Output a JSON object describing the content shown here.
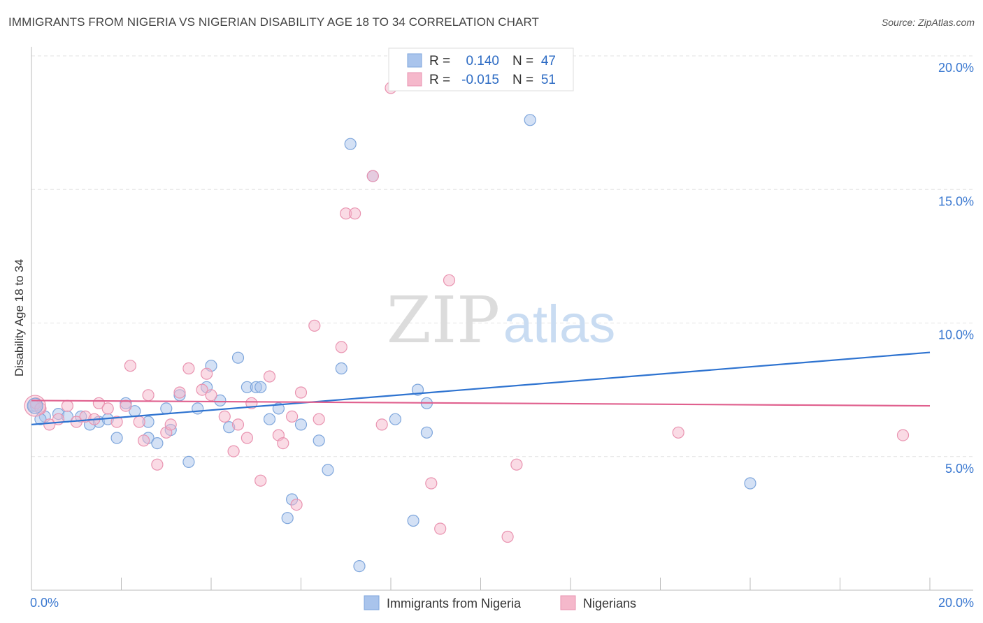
{
  "title": "IMMIGRANTS FROM NIGERIA VS NIGERIAN DISABILITY AGE 18 TO 34 CORRELATION CHART",
  "source": "Source: ZipAtlas.com",
  "watermark": {
    "zip": "ZIP",
    "atlas": "atlas"
  },
  "chart_data": {
    "type": "scatter",
    "xlim": [
      0,
      20
    ],
    "ylim": [
      0,
      20
    ],
    "ylabel": "Disability Age 18 to 34",
    "x_tick_labels": [
      {
        "value": 0,
        "label": "0.0%"
      },
      {
        "value": 20,
        "label": "20.0%"
      }
    ],
    "y_tick_labels": [
      {
        "value": 5,
        "label": "5.0%"
      },
      {
        "value": 10,
        "label": "10.0%"
      },
      {
        "value": 15,
        "label": "15.0%"
      },
      {
        "value": 20,
        "label": "20.0%"
      }
    ],
    "legend_stats": [
      {
        "r_label": "R =",
        "r_value": "0.140",
        "n_label": "N =",
        "n_value": "47"
      },
      {
        "r_label": "R =",
        "r_value": "-0.015",
        "n_label": "N =",
        "n_value": "51"
      }
    ],
    "series": [
      {
        "name": "Immigrants from Nigeria",
        "color": "#a9c4ec",
        "stroke": "#7ea6dc",
        "line_color": "#2e73d0",
        "trend": {
          "x": [
            0,
            20
          ],
          "y": [
            6.2,
            8.9
          ]
        },
        "points": [
          [
            0.1,
            6.9
          ],
          [
            0.3,
            6.5
          ],
          [
            0.6,
            6.6
          ],
          [
            0.8,
            6.5
          ],
          [
            1.1,
            6.5
          ],
          [
            1.3,
            6.2
          ],
          [
            1.5,
            6.3
          ],
          [
            1.7,
            6.4
          ],
          [
            1.9,
            5.7
          ],
          [
            2.1,
            7.0
          ],
          [
            2.3,
            6.7
          ],
          [
            2.6,
            5.7
          ],
          [
            2.6,
            6.3
          ],
          [
            2.8,
            5.5
          ],
          [
            3.0,
            6.8
          ],
          [
            3.1,
            6.0
          ],
          [
            3.3,
            7.3
          ],
          [
            3.5,
            4.8
          ],
          [
            3.7,
            6.8
          ],
          [
            3.9,
            7.6
          ],
          [
            4.0,
            8.4
          ],
          [
            4.2,
            7.1
          ],
          [
            4.4,
            6.1
          ],
          [
            4.6,
            8.7
          ],
          [
            4.8,
            7.6
          ],
          [
            5.0,
            7.6
          ],
          [
            5.1,
            7.6
          ],
          [
            5.3,
            6.4
          ],
          [
            5.5,
            6.8
          ],
          [
            5.7,
            2.7
          ],
          [
            5.8,
            3.4
          ],
          [
            6.0,
            6.2
          ],
          [
            6.4,
            5.6
          ],
          [
            6.6,
            4.5
          ],
          [
            6.9,
            8.3
          ],
          [
            7.1,
            16.7
          ],
          [
            7.3,
            0.9
          ],
          [
            7.6,
            15.5
          ],
          [
            8.1,
            6.4
          ],
          [
            8.5,
            2.6
          ],
          [
            8.8,
            7.0
          ],
          [
            8.6,
            7.5
          ],
          [
            8.8,
            5.9
          ],
          [
            11.1,
            17.6
          ],
          [
            16.0,
            4.0
          ],
          [
            0.05,
            6.9
          ],
          [
            0.2,
            6.4
          ]
        ]
      },
      {
        "name": "Nigerians",
        "color": "#f5b8cb",
        "stroke": "#e993b0",
        "line_color": "#e0608e",
        "trend": {
          "x": [
            0,
            20
          ],
          "y": [
            7.1,
            6.9
          ]
        },
        "points": [
          [
            0.1,
            7.0
          ],
          [
            0.2,
            6.8
          ],
          [
            0.4,
            6.2
          ],
          [
            0.6,
            6.4
          ],
          [
            0.8,
            6.9
          ],
          [
            1.0,
            6.3
          ],
          [
            1.2,
            6.5
          ],
          [
            1.4,
            6.4
          ],
          [
            1.5,
            7.0
          ],
          [
            1.7,
            6.8
          ],
          [
            1.9,
            6.3
          ],
          [
            2.1,
            6.9
          ],
          [
            2.2,
            8.4
          ],
          [
            2.4,
            6.3
          ],
          [
            2.5,
            5.6
          ],
          [
            2.6,
            7.3
          ],
          [
            2.8,
            4.7
          ],
          [
            3.0,
            5.9
          ],
          [
            3.1,
            6.2
          ],
          [
            3.3,
            7.4
          ],
          [
            3.5,
            8.3
          ],
          [
            3.8,
            7.5
          ],
          [
            3.9,
            8.1
          ],
          [
            4.0,
            7.3
          ],
          [
            4.3,
            6.5
          ],
          [
            4.5,
            5.2
          ],
          [
            4.6,
            6.2
          ],
          [
            4.8,
            5.7
          ],
          [
            4.9,
            7.0
          ],
          [
            5.1,
            4.1
          ],
          [
            5.3,
            8.0
          ],
          [
            5.5,
            5.8
          ],
          [
            5.6,
            5.5
          ],
          [
            5.8,
            6.5
          ],
          [
            5.9,
            3.2
          ],
          [
            6.0,
            7.4
          ],
          [
            6.3,
            9.9
          ],
          [
            6.4,
            6.4
          ],
          [
            6.9,
            9.1
          ],
          [
            7.0,
            14.1
          ],
          [
            7.2,
            14.1
          ],
          [
            7.6,
            15.5
          ],
          [
            7.8,
            6.2
          ],
          [
            8.0,
            18.8
          ],
          [
            8.9,
            4.0
          ],
          [
            9.1,
            2.3
          ],
          [
            9.3,
            11.6
          ],
          [
            10.6,
            2.0
          ],
          [
            10.8,
            4.7
          ],
          [
            14.4,
            5.9
          ],
          [
            19.4,
            5.8
          ]
        ]
      }
    ]
  }
}
